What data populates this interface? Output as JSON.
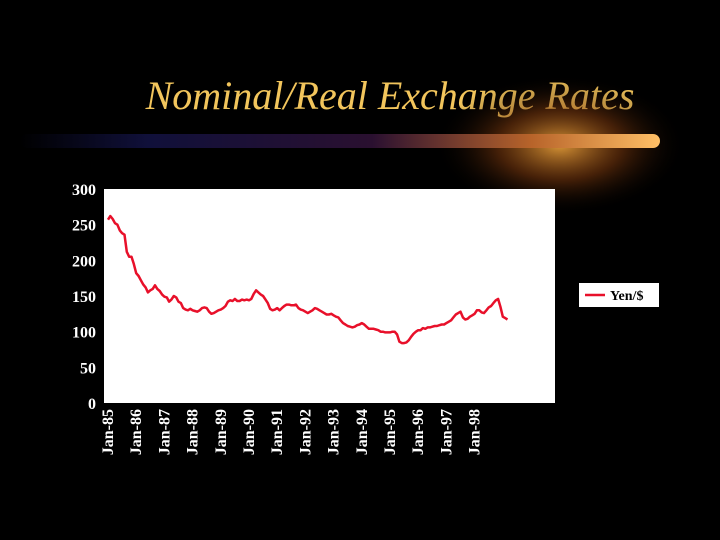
{
  "slide": {
    "title": "Nominal/Real Exchange Rates"
  },
  "colors": {
    "background": "#000000",
    "title": "#f2c55c",
    "plot_area": "#ffffff",
    "series": "#e8102a",
    "accent_start": "#16163a",
    "accent_end": "#ffb35a"
  },
  "chart_data": {
    "type": "line",
    "title": "",
    "xlabel": "",
    "ylabel": "",
    "ylim": [
      0,
      300
    ],
    "yticks": [
      "300",
      "250",
      "200",
      "150",
      "100",
      "50",
      "0"
    ],
    "ytick_values": [
      300,
      250,
      200,
      150,
      100,
      50,
      0
    ],
    "xticks": [
      "Jan-85",
      "Jan-86",
      "Jan-87",
      "Jan-88",
      "Jan-89",
      "Jan-90",
      "Jan-91",
      "Jan-92",
      "Jan-93",
      "Jan-94",
      "Jan-95",
      "Jan-96",
      "Jan-97",
      "Jan-98"
    ],
    "x_start": "Jan-85",
    "grid": false,
    "legend": {
      "position": "right",
      "entries": [
        "Yen/$"
      ]
    },
    "series": [
      {
        "name": "Yen/$",
        "frequency": "monthly",
        "values": [
          257,
          262,
          258,
          252,
          250,
          242,
          238,
          236,
          212,
          205,
          205,
          195,
          182,
          178,
          172,
          166,
          162,
          155,
          158,
          160,
          165,
          160,
          157,
          152,
          149,
          148,
          142,
          145,
          150,
          148,
          142,
          140,
          133,
          131,
          130,
          132,
          130,
          129,
          128,
          130,
          133,
          134,
          133,
          128,
          125,
          126,
          128,
          130,
          131,
          133,
          136,
          142,
          144,
          143,
          146,
          143,
          143,
          145,
          144,
          145,
          144,
          146,
          153,
          158,
          155,
          152,
          150,
          145,
          140,
          132,
          130,
          131,
          133,
          130,
          133,
          136,
          138,
          138,
          137,
          137,
          138,
          133,
          131,
          130,
          128,
          126,
          128,
          130,
          133,
          132,
          130,
          128,
          126,
          124,
          124,
          125,
          123,
          121,
          120,
          116,
          112,
          110,
          108,
          107,
          106,
          107,
          109,
          110,
          112,
          110,
          107,
          104,
          104,
          104,
          103,
          102,
          100,
          100,
          99,
          99,
          99,
          100,
          100,
          96,
          86,
          84,
          84,
          85,
          88,
          93,
          97,
          100,
          102,
          102,
          105,
          104,
          106,
          106,
          107,
          108,
          108,
          109,
          110,
          110,
          112,
          114,
          116,
          120,
          124,
          126,
          128,
          120,
          117,
          118,
          121,
          123,
          125,
          130,
          130,
          127,
          126,
          130,
          134,
          136,
          140,
          144,
          146,
          135,
          121,
          119,
          117
        ]
      }
    ]
  }
}
